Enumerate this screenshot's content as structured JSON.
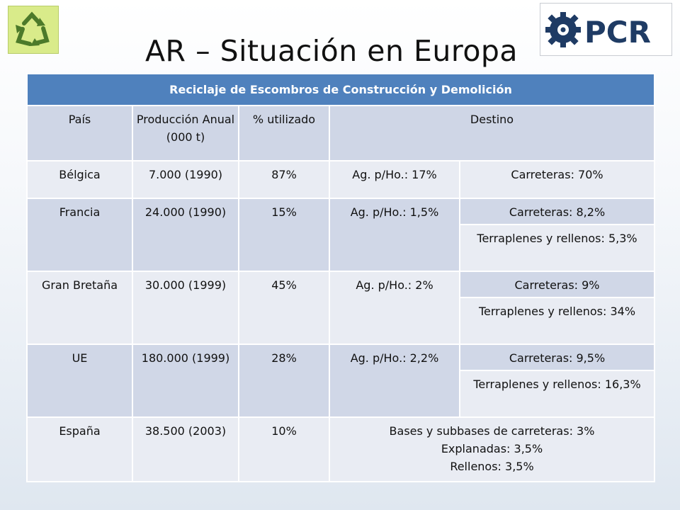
{
  "slide": {
    "title": "AR – Situación en Europa",
    "logo_text": "PCR"
  },
  "table": {
    "title": "Reciclaje de Escombros de Construcción y Demolición",
    "headers": {
      "country": "País",
      "production": "Producción Anual (000 t)",
      "utilized": "% utilizado",
      "destination": "Destino"
    },
    "rows": [
      {
        "country": "Bélgica",
        "production": "7.000 (1990)",
        "utilized": "87%",
        "aggregate": "Ag. p/Ho.: 17%",
        "destinations": [
          "Carreteras: 70%"
        ]
      },
      {
        "country": "Francia",
        "production": "24.000 (1990)",
        "utilized": "15%",
        "aggregate": "Ag. p/Ho.: 1,5%",
        "destinations": [
          "Carreteras: 8,2%",
          "Terraplenes y rellenos: 5,3%"
        ]
      },
      {
        "country": "Gran Bretaña",
        "production": "30.000 (1999)",
        "utilized": "45%",
        "aggregate": "Ag. p/Ho.: 2%",
        "destinations": [
          "Carreteras: 9%",
          "Terraplenes y rellenos: 34%"
        ]
      },
      {
        "country": "UE",
        "production": "180.000 (1999)",
        "utilized": "28%",
        "aggregate": "Ag. p/Ho.: 2,2%",
        "destinations": [
          "Carreteras: 9,5%",
          "Terraplenes y rellenos: 16,3%"
        ]
      },
      {
        "country": "España",
        "production": "38.500 (2003)",
        "utilized": "10%",
        "destination_lines": [
          "Bases y subbases de carreteras: 3%",
          "Explanadas: 3,5%",
          "Rellenos: 3,5%"
        ]
      }
    ]
  },
  "colors": {
    "header_blue": "#4f81bd",
    "band_dark": "#d0d7e7",
    "band_light": "#e9ecf3",
    "logo_navy": "#1f3b64"
  },
  "icons": [
    "recycle-icon",
    "gear-icon"
  ]
}
